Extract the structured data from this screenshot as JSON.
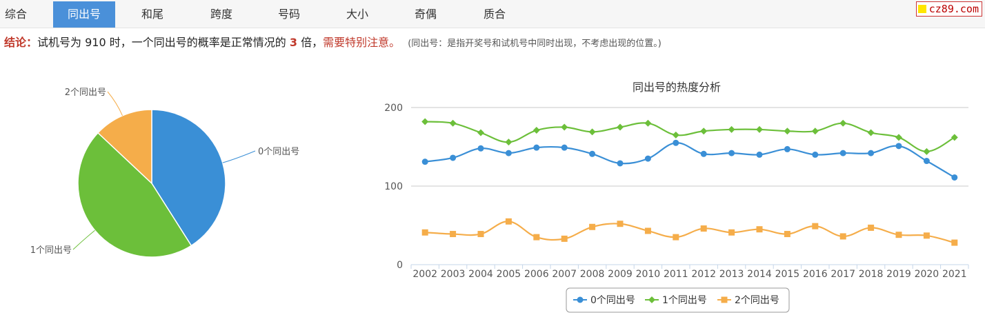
{
  "tabs": [
    {
      "label": "综合",
      "active": false
    },
    {
      "label": "同出号",
      "active": true
    },
    {
      "label": "和尾",
      "active": false
    },
    {
      "label": "跨度",
      "active": false
    },
    {
      "label": "号码",
      "active": false
    },
    {
      "label": "大小",
      "active": false
    },
    {
      "label": "奇偶",
      "active": false
    },
    {
      "label": "质合",
      "active": false
    }
  ],
  "logo": {
    "text": "cz89.com"
  },
  "conclusion": {
    "label": "结论：",
    "text1": "试机号为 910 时，一个同出号的概率是正常情况的",
    "multiple": "3",
    "text2": "倍，",
    "warning": "需要特别注意。",
    "note": "(同出号：是指开奖号和试机号中同时出现，不考虑出现的位置。)"
  },
  "colors": {
    "accent": "#4a90d9",
    "series0": "#3a8fd6",
    "series1": "#6cbf3a",
    "series2": "#f5ad4a",
    "warning": "#c0392b"
  },
  "chart_data": [
    {
      "type": "pie",
      "slices": [
        {
          "label": "0个同出号",
          "value": 41
        },
        {
          "label": "1个同出号",
          "value": 46
        },
        {
          "label": "2个同出号",
          "value": 13
        }
      ]
    },
    {
      "type": "line",
      "title": "同出号的热度分析",
      "categories": [
        "2002",
        "2003",
        "2004",
        "2005",
        "2006",
        "2007",
        "2008",
        "2009",
        "2010",
        "2011",
        "2012",
        "2013",
        "2014",
        "2015",
        "2016",
        "2017",
        "2018",
        "2019",
        "2020",
        "2021"
      ],
      "y_ticks": [
        "0",
        "100",
        "200"
      ],
      "ylim": [
        0,
        200
      ],
      "legend": "bottom-center",
      "series": [
        {
          "name": "0个同出号",
          "marker": "circle",
          "values": [
            131,
            136,
            148,
            142,
            149,
            149,
            141,
            129,
            135,
            155,
            141,
            142,
            140,
            147,
            140,
            142,
            142,
            151,
            132,
            111
          ]
        },
        {
          "name": "1个同出号",
          "marker": "diamond",
          "values": [
            182,
            180,
            168,
            156,
            171,
            175,
            169,
            175,
            180,
            165,
            170,
            172,
            172,
            170,
            170,
            180,
            168,
            162,
            144,
            162
          ]
        },
        {
          "name": "2个同出号",
          "marker": "square",
          "values": [
            41,
            39,
            39,
            55,
            35,
            33,
            48,
            52,
            43,
            35,
            46,
            41,
            45,
            39,
            49,
            36,
            47,
            38,
            37,
            28
          ]
        }
      ]
    }
  ]
}
